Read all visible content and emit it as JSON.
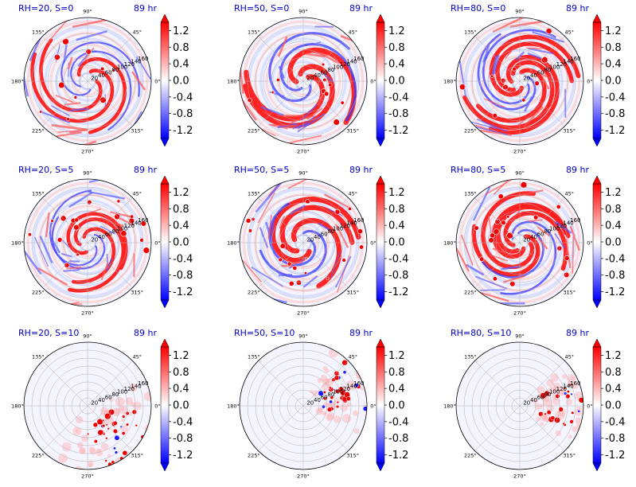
{
  "figure_title": "",
  "chart_data": [
    {
      "type": "heatmap",
      "projection": "polar",
      "title_left": "RH=20, S=0",
      "title_right": "89 hr",
      "rh": 20,
      "s": 0,
      "pattern": "spiral",
      "rticks": [
        20,
        40,
        60,
        80,
        100,
        120,
        140,
        160
      ],
      "angle_ticks": [
        "0°",
        "45°",
        "90°",
        "135°",
        "180°",
        "225°",
        "270°",
        "315°"
      ],
      "colorbar": {
        "ticks": [
          1.2,
          0.8,
          0.4,
          0.0,
          -0.4,
          -0.8,
          -1.2
        ],
        "range": [
          -1.4,
          1.4
        ],
        "cmap": "bwr"
      }
    },
    {
      "type": "heatmap",
      "projection": "polar",
      "title_left": "RH=50, S=0",
      "title_right": "89 hr",
      "rh": 50,
      "s": 0,
      "pattern": "spiral",
      "rticks": [
        20,
        40,
        60,
        80,
        100,
        120,
        140,
        160
      ],
      "angle_ticks": [
        "0°",
        "45°",
        "90°",
        "135°",
        "180°",
        "225°",
        "270°",
        "315°"
      ],
      "colorbar": {
        "ticks": [
          1.2,
          0.8,
          0.4,
          0.0,
          -0.4,
          -0.8,
          -1.2
        ],
        "range": [
          -1.4,
          1.4
        ],
        "cmap": "bwr"
      }
    },
    {
      "type": "heatmap",
      "projection": "polar",
      "title_left": "RH=80, S=0",
      "title_right": "89 hr",
      "rh": 80,
      "s": 0,
      "pattern": "spiral",
      "rticks": [
        20,
        40,
        60,
        80,
        100,
        120,
        140,
        160
      ],
      "angle_ticks": [
        "0°",
        "45°",
        "90°",
        "135°",
        "180°",
        "225°",
        "270°",
        "315°"
      ],
      "colorbar": {
        "ticks": [
          1.2,
          0.8,
          0.4,
          0.0,
          -0.4,
          -0.8,
          -1.2
        ],
        "range": [
          -1.4,
          1.4
        ],
        "cmap": "bwr"
      }
    },
    {
      "type": "heatmap",
      "projection": "polar",
      "title_left": "RH=20, S=5",
      "title_right": "89 hr",
      "rh": 20,
      "s": 5,
      "pattern": "spiral",
      "rticks": [
        20,
        40,
        60,
        80,
        100,
        120,
        140,
        160
      ],
      "angle_ticks": [
        "0°",
        "45°",
        "90°",
        "135°",
        "180°",
        "225°",
        "270°",
        "315°"
      ],
      "colorbar": {
        "ticks": [
          1.2,
          0.8,
          0.4,
          0.0,
          -0.4,
          -0.8,
          -1.2
        ],
        "range": [
          -1.4,
          1.4
        ],
        "cmap": "bwr"
      }
    },
    {
      "type": "heatmap",
      "projection": "polar",
      "title_left": "RH=50, S=5",
      "title_right": "89 hr",
      "rh": 50,
      "s": 5,
      "pattern": "spiral",
      "rticks": [
        20,
        40,
        60,
        80,
        100,
        120,
        140,
        160
      ],
      "angle_ticks": [
        "0°",
        "45°",
        "90°",
        "135°",
        "180°",
        "225°",
        "270°",
        "315°"
      ],
      "colorbar": {
        "ticks": [
          1.2,
          0.8,
          0.4,
          0.0,
          -0.4,
          -0.8,
          -1.2
        ],
        "range": [
          -1.4,
          1.4
        ],
        "cmap": "bwr"
      }
    },
    {
      "type": "heatmap",
      "projection": "polar",
      "title_left": "RH=80, S=5",
      "title_right": "89 hr",
      "rh": 80,
      "s": 5,
      "pattern": "spiral",
      "rticks": [
        20,
        40,
        60,
        80,
        100,
        120,
        140,
        160
      ],
      "angle_ticks": [
        "0°",
        "45°",
        "90°",
        "135°",
        "180°",
        "225°",
        "270°",
        "315°"
      ],
      "colorbar": {
        "ticks": [
          1.2,
          0.8,
          0.4,
          0.0,
          -0.4,
          -0.8,
          -1.2
        ],
        "range": [
          -1.4,
          1.4
        ],
        "cmap": "bwr"
      }
    },
    {
      "type": "heatmap",
      "projection": "polar",
      "title_left": "RH=20, S=10",
      "title_right": "89 hr",
      "rh": 20,
      "s": 10,
      "pattern": "scatter-sw",
      "rticks": [
        20,
        40,
        60,
        80,
        100,
        120,
        140,
        160
      ],
      "angle_ticks": [
        "0°",
        "45°",
        "90°",
        "135°",
        "180°",
        "225°",
        "270°",
        "315°"
      ],
      "colorbar": {
        "ticks": [
          1.2,
          0.8,
          0.4,
          0.0,
          -0.4,
          -0.8,
          -1.2
        ],
        "range": [
          -1.4,
          1.4
        ],
        "cmap": "bwr"
      }
    },
    {
      "type": "heatmap",
      "projection": "polar",
      "title_left": "RH=50, S=10",
      "title_right": "89 hr",
      "rh": 50,
      "s": 10,
      "pattern": "scatter-ne",
      "rticks": [
        20,
        40,
        60,
        80,
        100,
        120,
        140,
        160
      ],
      "angle_ticks": [
        "0°",
        "45°",
        "90°",
        "135°",
        "180°",
        "225°",
        "270°",
        "315°"
      ],
      "colorbar": {
        "ticks": [
          1.2,
          0.8,
          0.4,
          0.0,
          -0.4,
          -0.8,
          -1.2
        ],
        "range": [
          -1.4,
          1.4
        ],
        "cmap": "bwr"
      }
    },
    {
      "type": "heatmap",
      "projection": "polar",
      "title_left": "RH=80, S=10",
      "title_right": "89 hr",
      "rh": 80,
      "s": 10,
      "pattern": "scatter-e",
      "rticks": [
        20,
        40,
        60,
        80,
        100,
        120,
        140,
        160
      ],
      "angle_ticks": [
        "0°",
        "45°",
        "90°",
        "135°",
        "180°",
        "225°",
        "270°",
        "315°"
      ],
      "colorbar": {
        "ticks": [
          1.2,
          0.8,
          0.4,
          0.0,
          -0.4,
          -0.8,
          -1.2
        ],
        "range": [
          -1.4,
          1.4
        ],
        "cmap": "bwr"
      }
    }
  ]
}
